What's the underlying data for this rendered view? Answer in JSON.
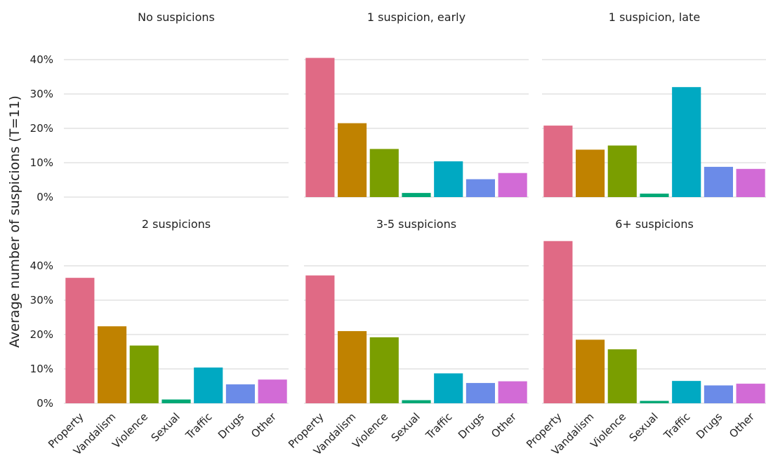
{
  "chart_data": {
    "type": "bar",
    "ylabel": "Average number of suspicions (T=11)",
    "xlabel": "",
    "ylim": [
      0,
      0.5
    ],
    "y_ticks": [
      0,
      0.1,
      0.2,
      0.3,
      0.4
    ],
    "y_tick_labels": [
      "0%",
      "10%",
      "20%",
      "30%",
      "40%"
    ],
    "grid": "horizontal",
    "categories": [
      "Property",
      "Vandalism",
      "Violence",
      "Sexual",
      "Traffic",
      "Drugs",
      "Other"
    ],
    "colors": [
      "#E06A85",
      "#C08200",
      "#7A9E00",
      "#00A875",
      "#00A9C2",
      "#6B8BE8",
      "#D26BD6"
    ],
    "panels": [
      {
        "title": "No suspicions",
        "values": [
          0,
          0,
          0,
          0,
          0,
          0,
          0
        ]
      },
      {
        "title": "1 suspicion, early",
        "values": [
          0.405,
          0.215,
          0.14,
          0.012,
          0.104,
          0.052,
          0.07
        ]
      },
      {
        "title": "1 suspicion, late",
        "values": [
          0.208,
          0.138,
          0.15,
          0.01,
          0.32,
          0.088,
          0.082
        ]
      },
      {
        "title": "2 suspicions",
        "values": [
          0.365,
          0.224,
          0.168,
          0.011,
          0.104,
          0.055,
          0.069
        ]
      },
      {
        "title": "3-5 suspicions",
        "values": [
          0.372,
          0.21,
          0.192,
          0.009,
          0.087,
          0.059,
          0.064
        ]
      },
      {
        "title": "6+ suspicions",
        "values": [
          0.472,
          0.185,
          0.157,
          0.007,
          0.065,
          0.052,
          0.057
        ]
      }
    ]
  }
}
